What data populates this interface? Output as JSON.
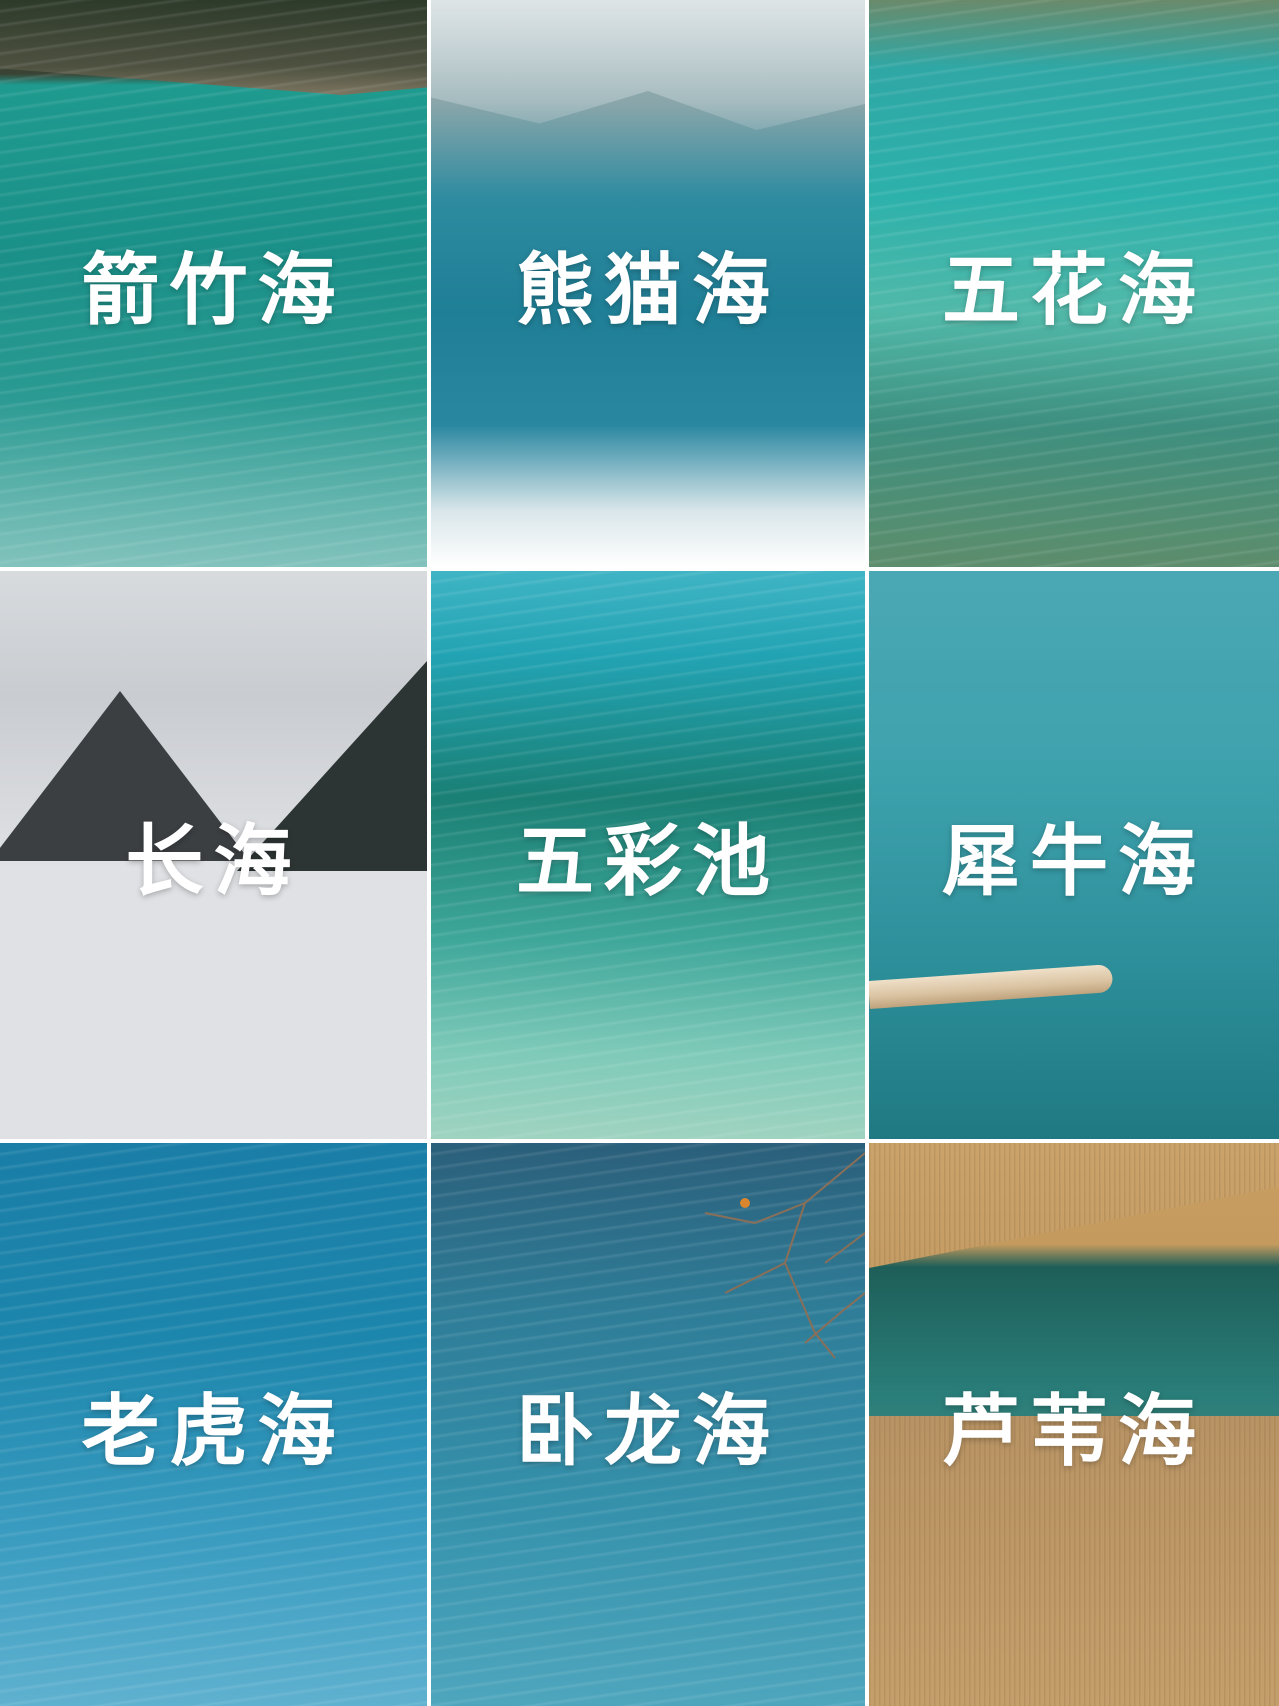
{
  "tiles": [
    {
      "label": "箭竹海"
    },
    {
      "label": "熊猫海"
    },
    {
      "label": "五花海"
    },
    {
      "label": "长海"
    },
    {
      "label": "五彩池"
    },
    {
      "label": "犀牛海"
    },
    {
      "label": "老虎海"
    },
    {
      "label": "卧龙海"
    },
    {
      "label": "芦苇海"
    }
  ]
}
